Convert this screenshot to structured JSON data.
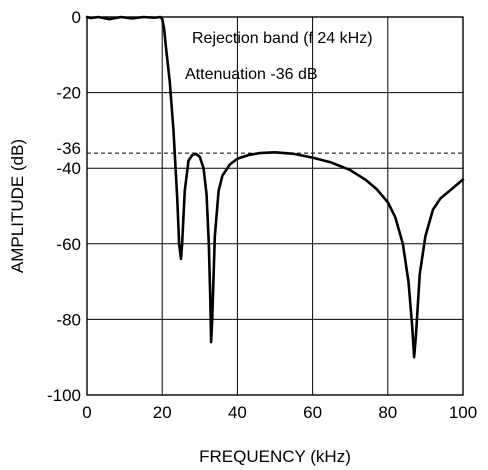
{
  "chart_data": {
    "type": "line",
    "xlabel": "FREQUENCY (kHz)",
    "ylabel": "AMPLITUDE (dB)",
    "xlim": [
      0,
      100
    ],
    "ylim": [
      -100,
      0
    ],
    "x_ticks": [
      0,
      20,
      40,
      60,
      80,
      100
    ],
    "y_ticks": [
      0,
      -20,
      -40,
      -60,
      -80,
      -100
    ],
    "extra_y_tick": -36,
    "grid": true,
    "reference_line": {
      "y": -36,
      "style": "dashed"
    },
    "annotations": [
      "Rejection band (f  24 kHz)",
      "Attenuation -36 dB"
    ],
    "series": [
      {
        "color": "#000000",
        "x": [
          0,
          1,
          3,
          6,
          9,
          12,
          15,
          18,
          19.5,
          20,
          20.5,
          21,
          22,
          23,
          24,
          24.5,
          25,
          25.3,
          26,
          27,
          28,
          29,
          30,
          31,
          31.8,
          32.4,
          32.8,
          33,
          33.3,
          34,
          35,
          36,
          38,
          40,
          43,
          46,
          50,
          55,
          60,
          65,
          70,
          74,
          77,
          80,
          82,
          84,
          85.5,
          86.5,
          87,
          87.5,
          88.5,
          90,
          92,
          94,
          97,
          100
        ],
        "y": [
          0,
          -0.3,
          0,
          -0.6,
          0,
          -0.4,
          0,
          -0.2,
          0,
          -0.5,
          -3,
          -8,
          -17,
          -30,
          -48,
          -60,
          -64,
          -60,
          -46,
          -38,
          -36.5,
          -36.2,
          -37,
          -40,
          -47,
          -60,
          -75,
          -86,
          -80,
          -58,
          -46,
          -42,
          -39,
          -37.5,
          -36.5,
          -36,
          -35.8,
          -36.2,
          -37.2,
          -38.5,
          -40.5,
          -43,
          -45.5,
          -49,
          -53,
          -60,
          -70,
          -82,
          -90,
          -84,
          -68,
          -58,
          -51,
          -48,
          -45.5,
          -43
        ]
      }
    ]
  }
}
